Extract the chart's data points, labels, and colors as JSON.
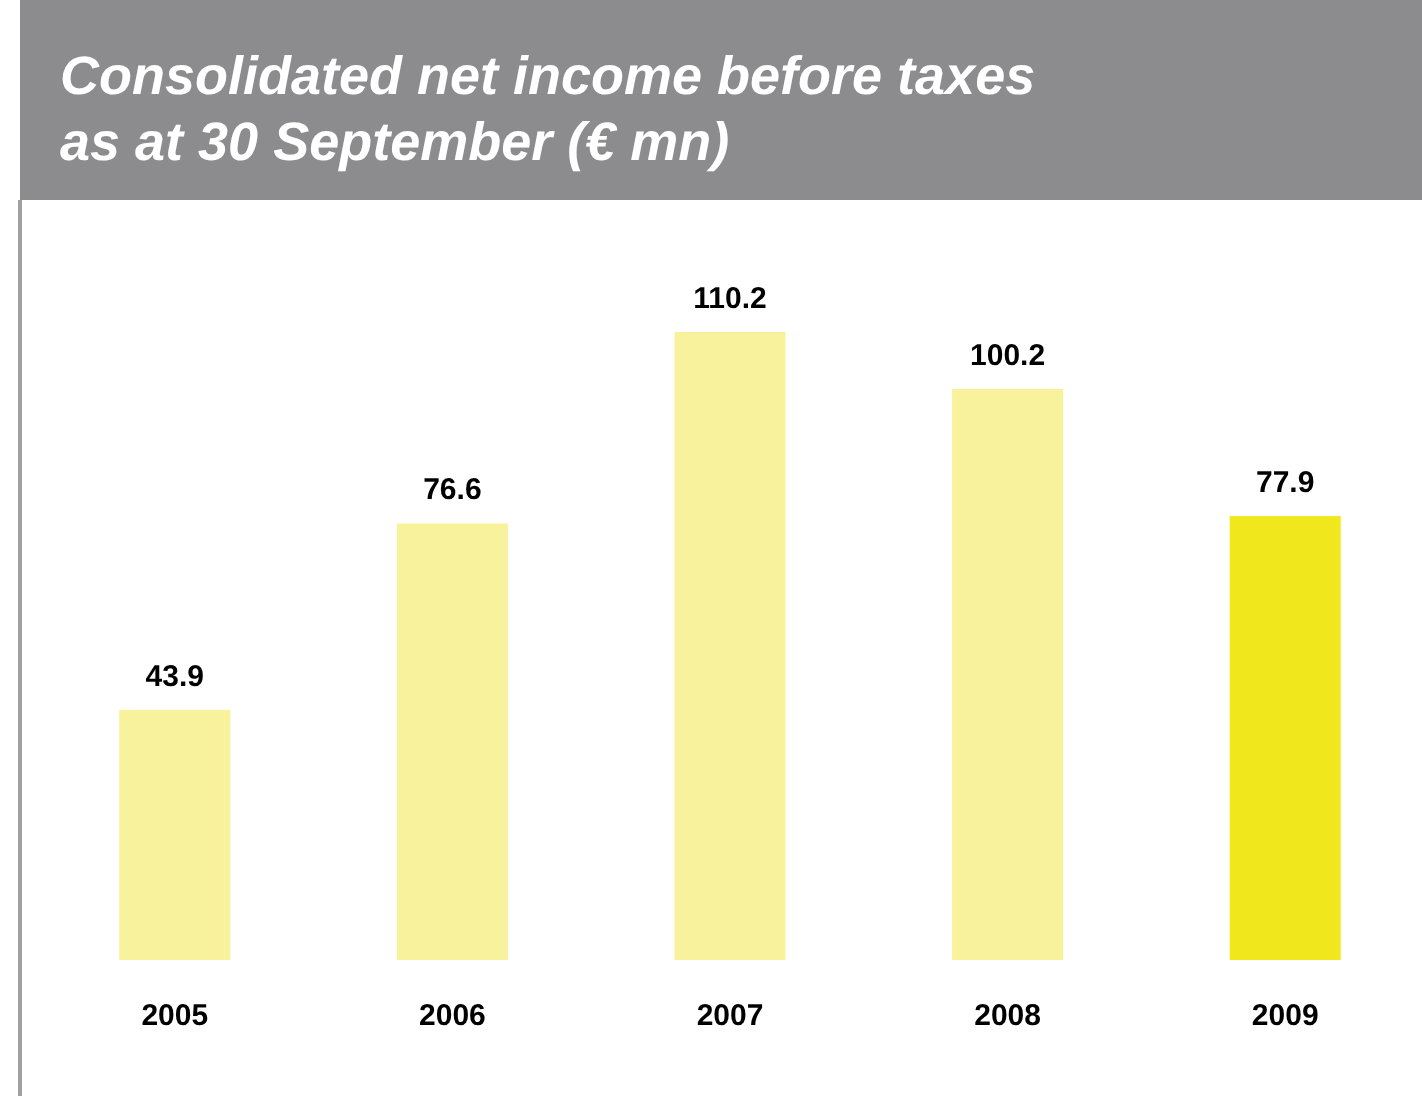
{
  "chart_data": {
    "type": "bar",
    "title": "Consolidated net income before taxes\nas at 30 September (€ mn)",
    "categories": [
      "2005",
      "2006",
      "2007",
      "2008",
      "2009"
    ],
    "values": [
      43.9,
      76.6,
      110.2,
      100.2,
      77.9
    ],
    "colors": [
      "#f7f29b",
      "#f7f29b",
      "#f7f29b",
      "#f7f29b",
      "#f0e81c"
    ],
    "data_labels": true
  }
}
